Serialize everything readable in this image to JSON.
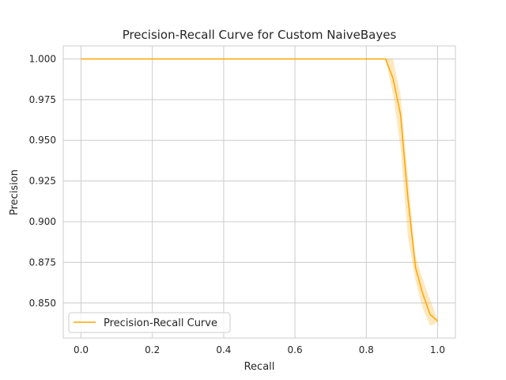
{
  "chart_data": {
    "type": "line",
    "title": "Precision-Recall Curve for Custom NaiveBayes",
    "xlabel": "Recall",
    "ylabel": "Precision",
    "xlim": [
      -0.05,
      1.05
    ],
    "ylim": [
      0.8285,
      1.008
    ],
    "xticks": [
      0.0,
      0.2,
      0.4,
      0.6,
      0.8,
      1.0
    ],
    "xtick_labels": [
      "0.0",
      "0.2",
      "0.4",
      "0.6",
      "0.8",
      "1.0"
    ],
    "yticks": [
      0.85,
      0.875,
      0.9,
      0.925,
      0.95,
      0.975,
      1.0
    ],
    "ytick_labels": [
      "0.850",
      "0.875",
      "0.900",
      "0.925",
      "0.950",
      "0.975",
      "1.000"
    ],
    "grid": true,
    "legend_position": "lower-left",
    "series": [
      {
        "name": "Precision-Recall Curve",
        "color": "#ffa500",
        "x": [
          0.0,
          0.854,
          0.875,
          0.896,
          0.917,
          0.938,
          0.958,
          0.979,
          1.0
        ],
        "y": [
          1.0,
          1.0,
          0.988,
          0.966,
          0.914,
          0.872,
          0.856,
          0.843,
          0.839
        ],
        "band_upper": [
          1.0,
          1.0,
          1.0,
          0.978,
          0.927,
          0.879,
          0.865,
          0.852,
          0.84
        ],
        "band_lower": [
          1.0,
          1.0,
          0.978,
          0.946,
          0.89,
          0.864,
          0.847,
          0.836,
          0.838
        ]
      }
    ]
  }
}
